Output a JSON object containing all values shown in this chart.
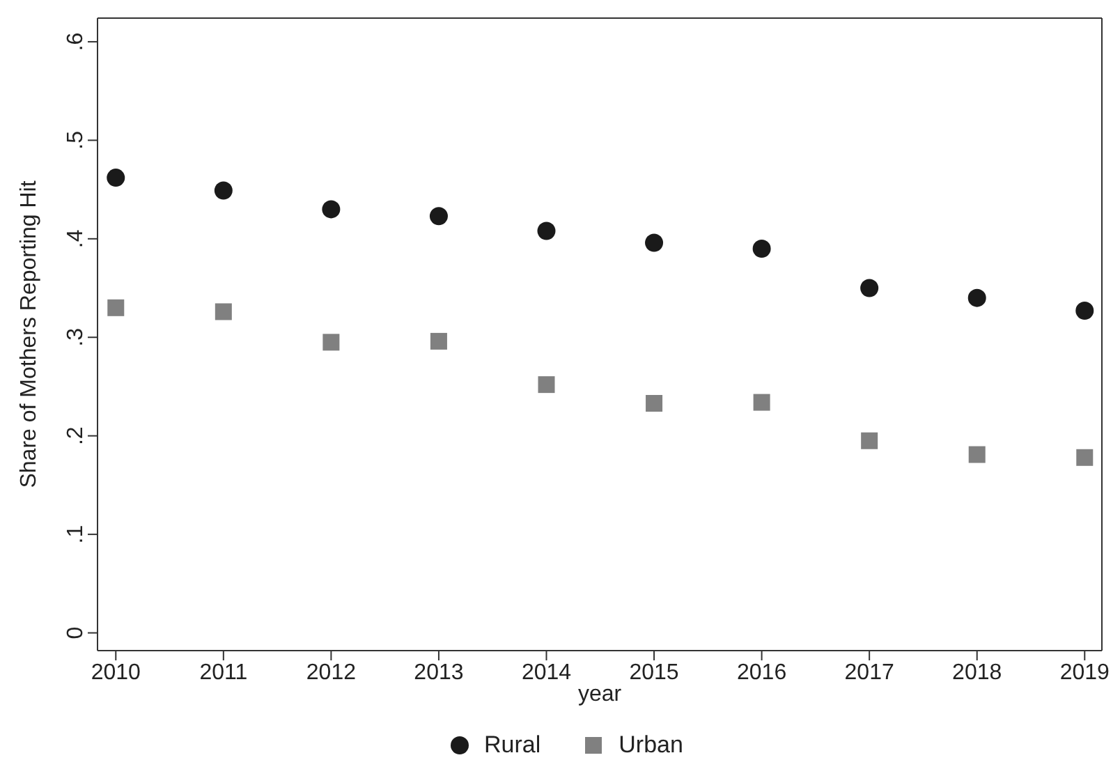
{
  "chart_data": {
    "type": "scatter",
    "xlabel": "year",
    "ylabel": "Share of Mothers Reporting Hit",
    "x": [
      2010,
      2011,
      2012,
      2013,
      2014,
      2015,
      2016,
      2017,
      2018,
      2019
    ],
    "series": [
      {
        "name": "Rural",
        "color": "#1a1a1a",
        "marker": "circle",
        "values": [
          0.462,
          0.449,
          0.43,
          0.423,
          0.408,
          0.396,
          0.39,
          0.35,
          0.34,
          0.327
        ]
      },
      {
        "name": "Urban",
        "color": "#808080",
        "marker": "square",
        "values": [
          0.33,
          0.326,
          0.295,
          0.296,
          0.252,
          0.233,
          0.234,
          0.195,
          0.181,
          0.178
        ]
      }
    ],
    "xlim": [
      2009.83,
      2019.16
    ],
    "xticks": [
      2010,
      2011,
      2012,
      2013,
      2014,
      2015,
      2016,
      2017,
      2018,
      2019
    ],
    "ylim": [
      -0.018,
      0.624
    ],
    "yticks": [
      {
        "value": 0,
        "label": "0"
      },
      {
        "value": 0.1,
        "label": ".1"
      },
      {
        "value": 0.2,
        "label": ".2"
      },
      {
        "value": 0.3,
        "label": ".3"
      },
      {
        "value": 0.4,
        "label": ".4"
      },
      {
        "value": 0.5,
        "label": ".5"
      },
      {
        "value": 0.6,
        "label": ".6"
      }
    ],
    "grid": false,
    "legend": "bottom"
  }
}
